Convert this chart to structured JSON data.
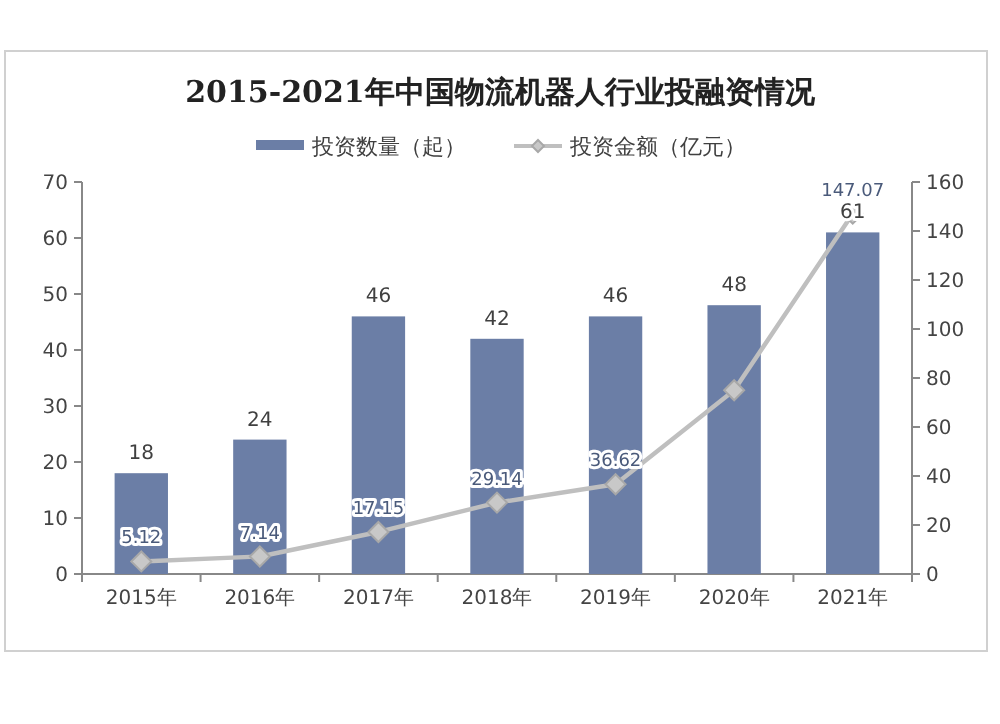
{
  "chart_data": {
    "type": "bar",
    "title": "2015-2021年中国物流机器人行业投融资情况",
    "categories": [
      "2015年",
      "2016年",
      "2017年",
      "2018年",
      "2019年",
      "2020年",
      "2021年"
    ],
    "series": [
      {
        "name": "投资数量（起）",
        "type": "bar",
        "color": "#6b7ea6",
        "values": [
          18,
          24,
          46,
          42,
          46,
          48,
          61
        ],
        "value_labels": [
          "18",
          "24",
          "46",
          "42",
          "46",
          "48",
          "61"
        ]
      },
      {
        "name": "投资金额（亿元）",
        "type": "line",
        "axis": "y2",
        "color": "#bfbfbf",
        "marker": "diamond",
        "values": [
          5.12,
          7.14,
          17.15,
          29.14,
          36.62,
          75,
          147.07
        ],
        "value_labels": [
          "5.12",
          "7.14",
          "17.15",
          "29.14",
          "36.62",
          null,
          "147.07"
        ]
      }
    ],
    "ylim": [
      0,
      70
    ],
    "yticks": [
      0,
      10,
      20,
      30,
      40,
      50,
      60,
      70
    ],
    "y2lim": [
      0,
      160
    ],
    "y2ticks": [
      0,
      20,
      40,
      60,
      80,
      100,
      120,
      140,
      160
    ],
    "legend": "top"
  }
}
